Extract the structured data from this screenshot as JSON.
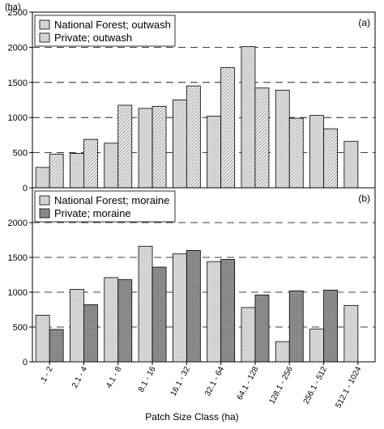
{
  "chart_data": [
    {
      "type": "bar",
      "panel_label": "(a)",
      "ylabel": "(ha)",
      "ylim": [
        0,
        2500
      ],
      "yticks": [
        "0",
        "500",
        "1000",
        "1500",
        "2000",
        "2500"
      ],
      "grid": "dashed horizontal",
      "legend_position": "top-left",
      "categories": [
        ".1 - 2",
        "2.1 - 4",
        "4.1 - 8",
        "8.1 - 16",
        "16.1 - 32",
        "32.1 - 64",
        "64.1 - 128",
        "128.1 - 256",
        "256.1 - 512",
        "512.1 - 1024"
      ],
      "series": [
        {
          "name": "National Forest; outwash",
          "color": "#d4d4d4",
          "values": [
            290,
            490,
            635,
            1130,
            1250,
            1020,
            2010,
            1390,
            1030,
            660
          ]
        },
        {
          "name": "Private; outwash",
          "color": "#e6e6e6",
          "values": [
            480,
            690,
            1175,
            1160,
            1450,
            1710,
            1420,
            990,
            840,
            null
          ]
        }
      ]
    },
    {
      "type": "bar",
      "panel_label": "(b)",
      "ylim": [
        0,
        2500
      ],
      "yticks": [
        "0",
        "500",
        "1000",
        "1500",
        "2000"
      ],
      "grid": "dashed horizontal",
      "legend_position": "top-left",
      "xlabel": "Patch Size Class (ha)",
      "categories": [
        ".1 - 2",
        "2.1 - 4",
        "4.1 - 8",
        "8.1 - 16",
        "16.1 - 32",
        "32.1 - 64",
        "64.1 - 128",
        "128.1 - 256",
        "256.1 - 512",
        "512.1 - 1024"
      ],
      "series": [
        {
          "name": "National Forest; moraine",
          "color": "#cfcfcf",
          "values": [
            670,
            1040,
            1210,
            1660,
            1550,
            1440,
            780,
            290,
            470,
            810
          ]
        },
        {
          "name": "Private; moraine",
          "color": "#8a8a8a",
          "values": [
            465,
            820,
            1180,
            1360,
            1600,
            1470,
            960,
            1020,
            1030,
            null
          ]
        }
      ]
    }
  ]
}
